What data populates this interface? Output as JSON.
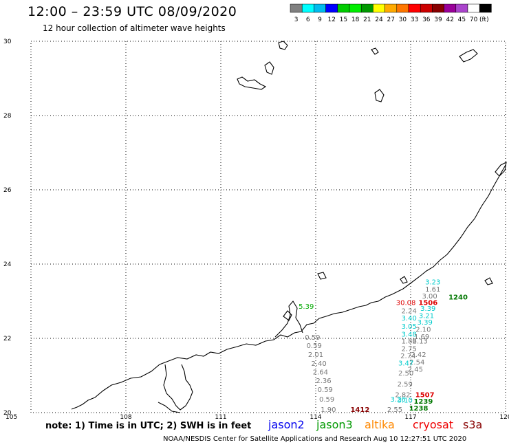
{
  "header": {
    "title": "12:00 – 23:59 UTC 08/09/2020",
    "subtitle": "12 hour collection of altimeter wave heights"
  },
  "color_scale": {
    "colors": [
      "#808080",
      "#00ffff",
      "#00bbee",
      "#0000ff",
      "#00cc00",
      "#00ee00",
      "#009900",
      "#ffff00",
      "#ffaa00",
      "#ff7700",
      "#ff0000",
      "#cc0000",
      "#880000",
      "#990099",
      "#aa44cc",
      "#ffffff",
      "#000000"
    ],
    "labels": [
      "3",
      "6",
      "9",
      "12",
      "15",
      "18",
      "21",
      "24",
      "27",
      "30",
      "33",
      "36",
      "39",
      "42",
      "45",
      "70",
      "(ft)"
    ]
  },
  "axes": {
    "lat_labels": [
      "30",
      "28",
      "26",
      "24",
      "22",
      "20"
    ],
    "lon_labels": [
      "105",
      "108",
      "111",
      "114",
      "117",
      "120"
    ]
  },
  "observations": [
    {
      "text": "3.23",
      "color": "#00cccc",
      "lon": 117.7,
      "lat": 23.45
    },
    {
      "text": "1.61",
      "color": "#777777",
      "lon": 117.7,
      "lat": 23.26
    },
    {
      "text": "3.00",
      "color": "#777777",
      "lon": 117.6,
      "lat": 23.07
    },
    {
      "text": "30.08",
      "color": "#dd0000",
      "lon": 116.85,
      "lat": 22.9
    },
    {
      "text": "1506",
      "color": "#dd0000",
      "lon": 117.55,
      "lat": 22.9
    },
    {
      "text": "1240",
      "color": "#007700",
      "lon": 118.5,
      "lat": 23.05
    },
    {
      "text": "3.39",
      "color": "#00cccc",
      "lon": 117.55,
      "lat": 22.74
    },
    {
      "text": "2.24",
      "color": "#777777",
      "lon": 116.95,
      "lat": 22.68
    },
    {
      "text": "3.21",
      "color": "#00cccc",
      "lon": 117.5,
      "lat": 22.55
    },
    {
      "text": "3.40",
      "color": "#00cccc",
      "lon": 116.95,
      "lat": 22.48
    },
    {
      "text": "3.39",
      "color": "#00cccc",
      "lon": 117.45,
      "lat": 22.37
    },
    {
      "text": "3.05",
      "color": "#00cccc",
      "lon": 116.95,
      "lat": 22.26
    },
    {
      "text": "2.10",
      "color": "#777777",
      "lon": 117.4,
      "lat": 22.18
    },
    {
      "text": "3.48",
      "color": "#00cccc",
      "lon": 116.95,
      "lat": 22.05
    },
    {
      "text": "1.69",
      "color": "#777777",
      "lon": 117.35,
      "lat": 21.98
    },
    {
      "text": "1.86",
      "color": "#777777",
      "lon": 116.95,
      "lat": 21.86
    },
    {
      "text": "2.13",
      "color": "#777777",
      "lon": 117.3,
      "lat": 21.86
    },
    {
      "text": "2.75",
      "color": "#777777",
      "lon": 116.95,
      "lat": 21.66
    },
    {
      "text": "2.42",
      "color": "#777777",
      "lon": 117.25,
      "lat": 21.5
    },
    {
      "text": "2.74",
      "color": "#777777",
      "lon": 116.92,
      "lat": 21.46
    },
    {
      "text": "2.54",
      "color": "#777777",
      "lon": 117.2,
      "lat": 21.3
    },
    {
      "text": "3.47",
      "color": "#00cccc",
      "lon": 116.85,
      "lat": 21.27
    },
    {
      "text": "2.45",
      "color": "#777777",
      "lon": 117.15,
      "lat": 21.1
    },
    {
      "text": "2.50",
      "color": "#777777",
      "lon": 116.85,
      "lat": 21.0
    },
    {
      "text": "2.59",
      "color": "#777777",
      "lon": 116.82,
      "lat": 20.7
    },
    {
      "text": "2.82",
      "color": "#777777",
      "lon": 116.75,
      "lat": 20.42
    },
    {
      "text": "3.26",
      "color": "#00cccc",
      "lon": 116.6,
      "lat": 20.3
    },
    {
      "text": "3.10",
      "color": "#00cccc",
      "lon": 116.82,
      "lat": 20.27
    },
    {
      "text": "1507",
      "color": "#dd0000",
      "lon": 117.45,
      "lat": 20.42
    },
    {
      "text": "1239",
      "color": "#007700",
      "lon": 117.4,
      "lat": 20.24
    },
    {
      "text": "1238",
      "color": "#007700",
      "lon": 117.25,
      "lat": 20.06
    },
    {
      "text": "2.55",
      "color": "#777777",
      "lon": 116.5,
      "lat": 20.02
    },
    {
      "text": "1412",
      "color": "#880000",
      "lon": 115.4,
      "lat": 20.02
    },
    {
      "text": "1.90",
      "color": "#777777",
      "lon": 114.4,
      "lat": 20.02
    },
    {
      "text": "0.59",
      "color": "#777777",
      "lon": 114.35,
      "lat": 20.3
    },
    {
      "text": "0.59",
      "color": "#777777",
      "lon": 114.3,
      "lat": 20.56
    },
    {
      "text": "2.36",
      "color": "#777777",
      "lon": 114.25,
      "lat": 20.8
    },
    {
      "text": "2.64",
      "color": "#777777",
      "lon": 114.15,
      "lat": 21.03
    },
    {
      "text": "2.40",
      "color": "#777777",
      "lon": 114.1,
      "lat": 21.26
    },
    {
      "text": "2.01",
      "color": "#777777",
      "lon": 114.0,
      "lat": 21.5
    },
    {
      "text": "0.59",
      "color": "#777777",
      "lon": 113.95,
      "lat": 21.74
    },
    {
      "text": "0.59",
      "color": "#777777",
      "lon": 113.9,
      "lat": 21.96
    },
    {
      "text": "5.39",
      "color": "#00aa00",
      "lon": 113.7,
      "lat": 22.8
    }
  ],
  "footer": {
    "note": "note:  1) Time is in UTC;  2) SWH is in feet",
    "satellites": [
      {
        "name": "jason2",
        "color": "#0000ee"
      },
      {
        "name": "jason3",
        "color": "#009900"
      },
      {
        "name": "altika",
        "color": "#ff8800"
      },
      {
        "name": "cryosat",
        "color": "#ee0000"
      },
      {
        "name": "s3a",
        "color": "#880000"
      }
    ],
    "credit": "NOAA/NESDIS Center for Satellite Applications and Research    Aug 10 12:27:51 UTC 2020"
  }
}
